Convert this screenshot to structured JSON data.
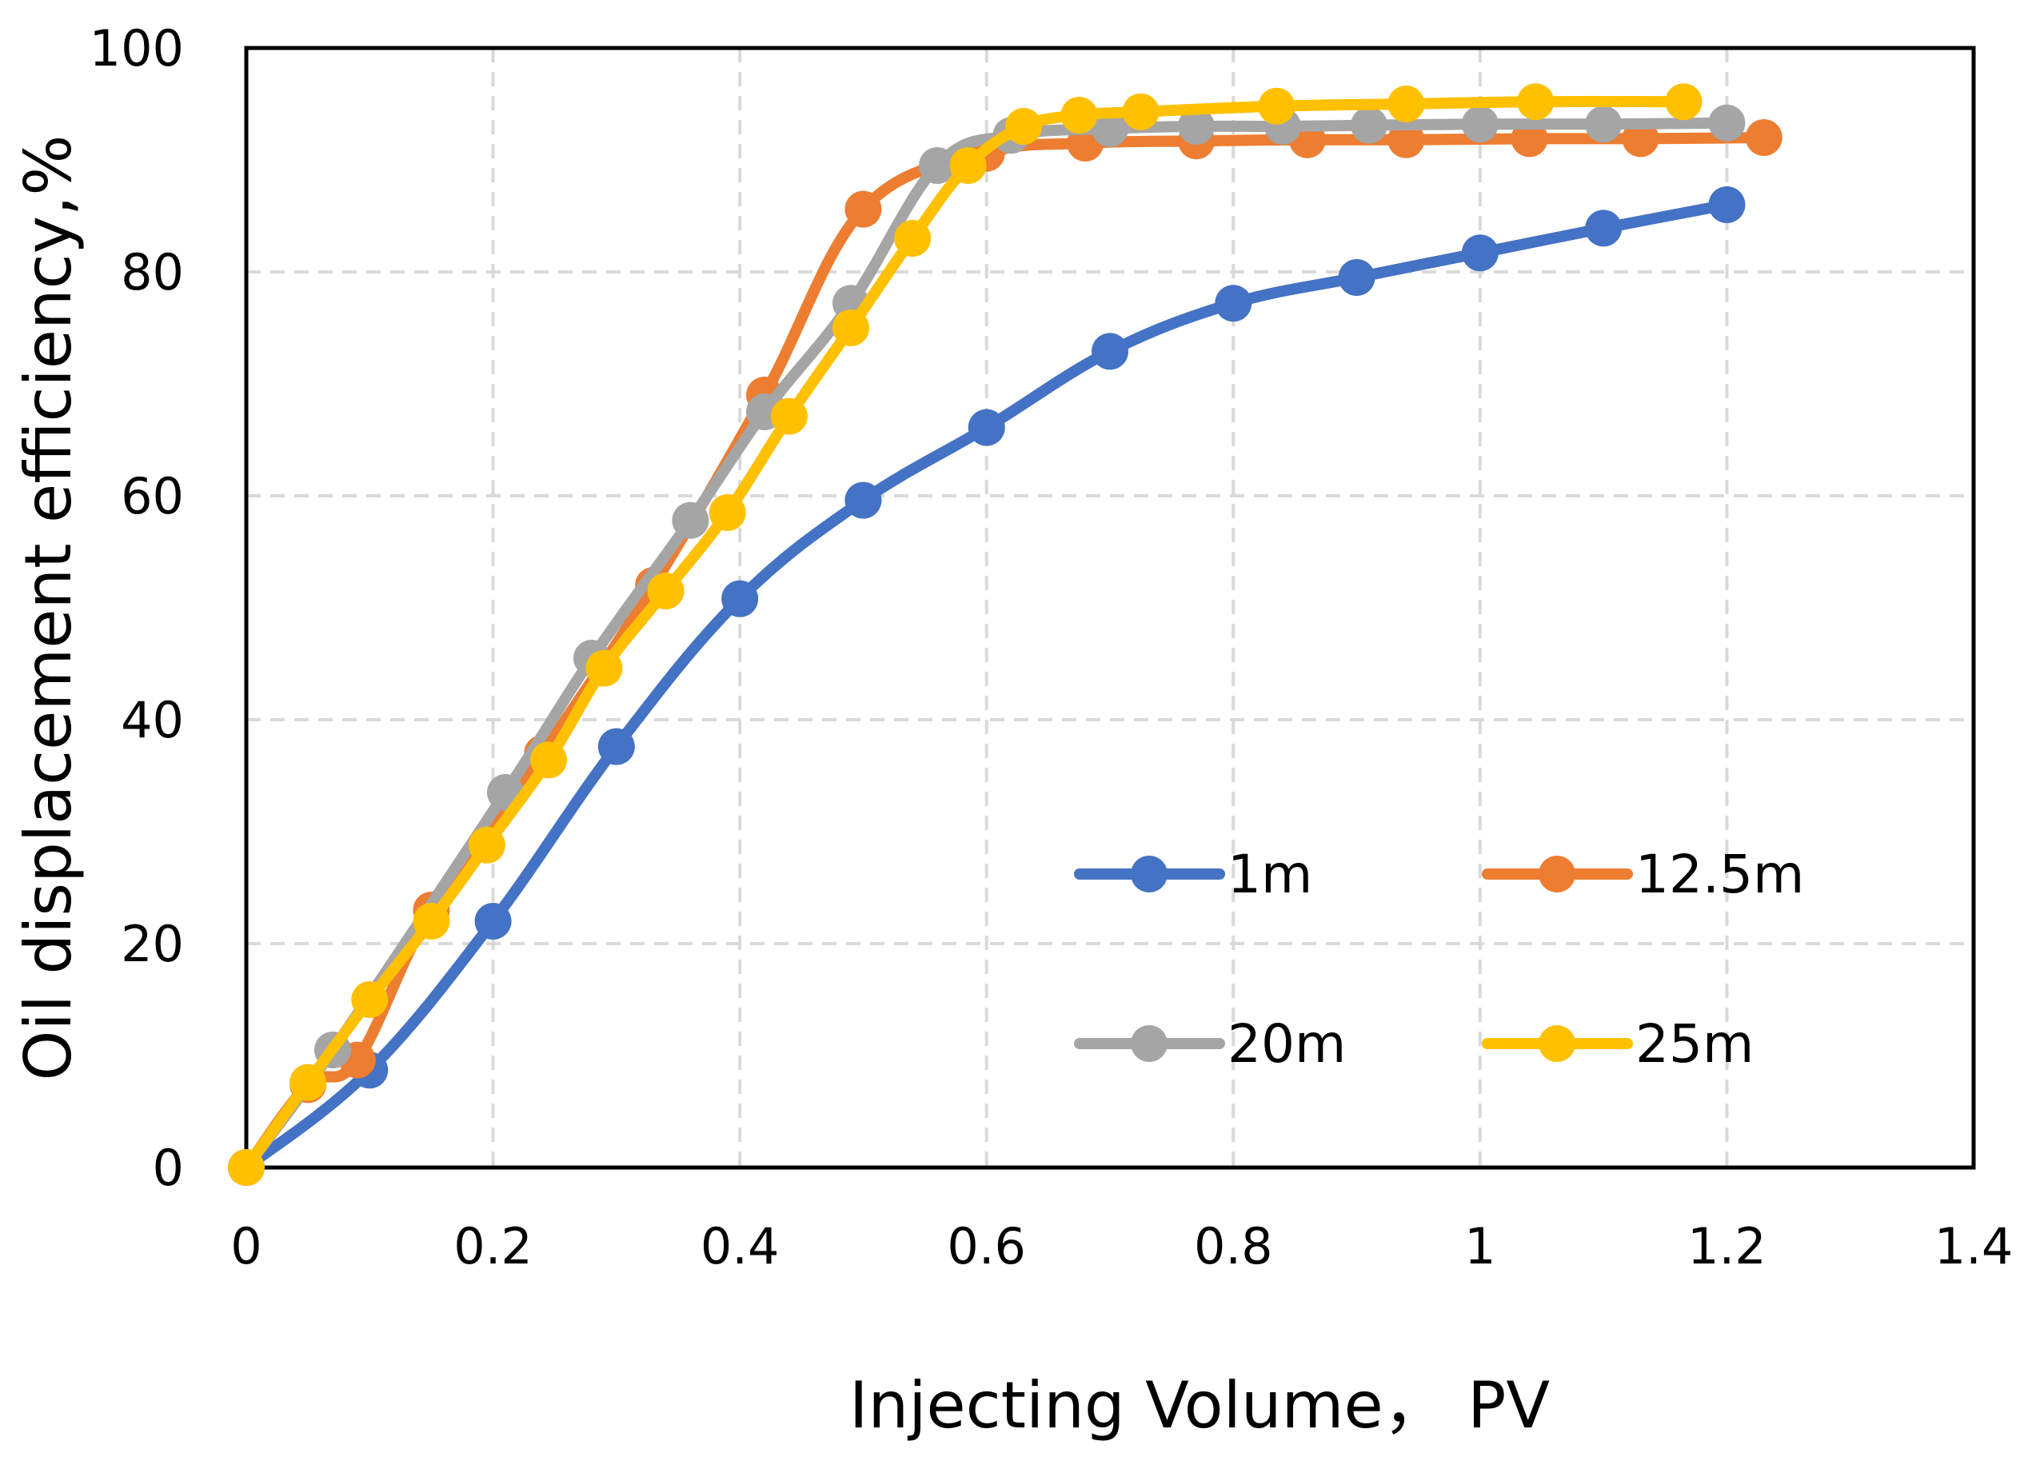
{
  "chart_data": {
    "type": "line",
    "title": "",
    "xlabel": "Injecting Volume， PV",
    "ylabel": "Oil displacement efficiency,%",
    "xlim": [
      0,
      1.4
    ],
    "ylim": [
      0,
      100
    ],
    "x_ticks": [
      "0",
      "0.2",
      "0.4",
      "0.6",
      "0.8",
      "1",
      "1.2",
      "1.4"
    ],
    "y_ticks": [
      "0",
      "20",
      "40",
      "60",
      "80",
      "100"
    ],
    "grid": true,
    "legend_position": "lower-right inside plot",
    "series": [
      {
        "name": "1m",
        "color": "#4472C4",
        "x": [
          0,
          0.1,
          0.2,
          0.3,
          0.4,
          0.5,
          0.6,
          0.7,
          0.8,
          0.9,
          1.0,
          1.1,
          1.2
        ],
        "y": [
          0,
          8.7,
          22,
          37.6,
          50.8,
          59.6,
          66.1,
          72.9,
          77.2,
          79.5,
          81.7,
          83.9,
          86
        ]
      },
      {
        "name": "12.5m",
        "color": "#ED7D31",
        "x": [
          0,
          0.05,
          0.09,
          0.15,
          0.24,
          0.33,
          0.42,
          0.5,
          0.6,
          0.68,
          0.77,
          0.86,
          0.94,
          1.04,
          1.13,
          1.23
        ],
        "y": [
          0,
          7.4,
          9.6,
          23,
          37,
          52,
          69,
          85.6,
          90.6,
          91.5,
          91.7,
          91.8,
          91.8,
          91.9,
          91.9,
          92
        ]
      },
      {
        "name": "20m",
        "color": "#A5A5A5",
        "x": [
          0,
          0.07,
          0.21,
          0.28,
          0.36,
          0.42,
          0.49,
          0.56,
          0.62,
          0.7,
          0.77,
          0.84,
          0.91,
          1.0,
          1.1,
          1.2
        ],
        "y": [
          0,
          10.5,
          33.5,
          45.5,
          57.8,
          67.5,
          77.2,
          89.5,
          92.2,
          92.8,
          93,
          93,
          93.1,
          93.2,
          93.2,
          93.3
        ]
      },
      {
        "name": "25m",
        "color": "#FFC000",
        "x": [
          0,
          0.05,
          0.1,
          0.15,
          0.195,
          0.245,
          0.29,
          0.34,
          0.39,
          0.44,
          0.49,
          0.54,
          0.585,
          0.63,
          0.675,
          0.725,
          0.835,
          0.94,
          1.045,
          1.165
        ],
        "y": [
          0,
          7.6,
          15,
          22,
          28.8,
          36.4,
          44.6,
          51.5,
          58.5,
          67.1,
          75,
          83,
          89.5,
          93,
          94,
          94.3,
          94.8,
          95,
          95.2,
          95.2
        ]
      }
    ]
  }
}
